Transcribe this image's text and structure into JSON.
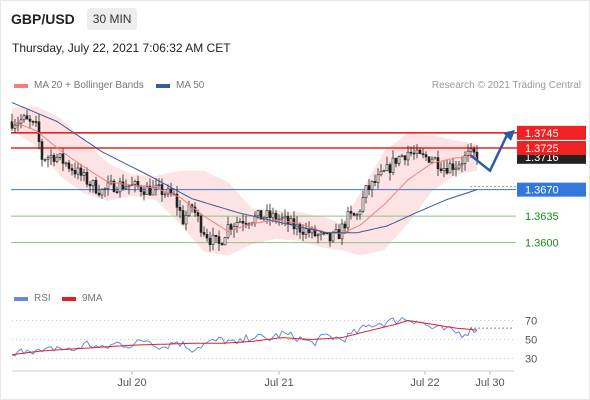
{
  "header": {
    "symbol": "GBP/USD",
    "timeframe": "30 MIN",
    "datetime": "Thursday, July 22, 2021 7:06:32 AM CET"
  },
  "legend": {
    "ma20_label": "MA 20 + Bollinger Bands",
    "ma50_label": "MA 50",
    "rsi_label": "RSI",
    "ma9_label": "9MA",
    "credit": "Research © 2021 Trading Central"
  },
  "colors": {
    "ma20": "#f08080",
    "band": "#fde3e3",
    "ma50": "#3b5a9a",
    "candle": "#222222",
    "resistance": "#ee2222",
    "pivot": "#3377dd",
    "support": "#88c488",
    "support_text": "#1b8a1b",
    "rsi": "#6688dd",
    "rsi_ma": "#dd2222",
    "arrow": "#2a5aa8"
  },
  "chart_data": [
    {
      "type": "candlestick",
      "title": "GBP/USD 30 MIN",
      "ylim": [
        1.3548,
        1.3795
      ],
      "x_ticks": [
        "Jul 20",
        "Jul 21",
        "Jul 22",
        "Jul 30"
      ],
      "levels": [
        {
          "name": "resistance-2",
          "value": 1.3745,
          "label": "1.3745",
          "style": "resistance"
        },
        {
          "name": "resistance-1",
          "value": 1.3725,
          "label": "1.3725",
          "style": "resistance"
        },
        {
          "name": "last-price",
          "value": 1.3716,
          "label": "1.3716",
          "style": "last"
        },
        {
          "name": "pivot",
          "value": 1.367,
          "label": "1.3670",
          "style": "pivot"
        },
        {
          "name": "support-1",
          "value": 1.3635,
          "label": "1.3635",
          "style": "support"
        },
        {
          "name": "support-2",
          "value": 1.36,
          "label": "1.3600",
          "style": "support"
        }
      ],
      "close_keypoints": [
        [
          0,
          1.376
        ],
        [
          4,
          1.3762
        ],
        [
          8,
          1.3752
        ],
        [
          10,
          1.3712
        ],
        [
          14,
          1.3715
        ],
        [
          18,
          1.3705
        ],
        [
          22,
          1.3692
        ],
        [
          26,
          1.3678
        ],
        [
          30,
          1.3668
        ],
        [
          34,
          1.3676
        ],
        [
          38,
          1.3676
        ],
        [
          42,
          1.3673
        ],
        [
          46,
          1.367
        ],
        [
          50,
          1.3668
        ],
        [
          54,
          1.366
        ],
        [
          57,
          1.363
        ],
        [
          60,
          1.3648
        ],
        [
          63,
          1.3622
        ],
        [
          66,
          1.3605
        ],
        [
          69,
          1.3597
        ],
        [
          72,
          1.3622
        ],
        [
          76,
          1.363
        ],
        [
          80,
          1.3632
        ],
        [
          84,
          1.3635
        ],
        [
          88,
          1.3633
        ],
        [
          91,
          1.3628
        ],
        [
          94,
          1.3621
        ],
        [
          97,
          1.3618
        ],
        [
          100,
          1.3612
        ],
        [
          103,
          1.3607
        ],
        [
          106,
          1.3604
        ],
        [
          109,
          1.3612
        ],
        [
          112,
          1.3633
        ],
        [
          115,
          1.3635
        ],
        [
          118,
          1.3668
        ],
        [
          122,
          1.3683
        ],
        [
          125,
          1.3695
        ],
        [
          128,
          1.371
        ],
        [
          132,
          1.372
        ],
        [
          136,
          1.3712
        ],
        [
          140,
          1.3713
        ],
        [
          144,
          1.37
        ],
        [
          148,
          1.3703
        ],
        [
          152,
          1.3715
        ],
        [
          155,
          1.3716
        ]
      ],
      "ma20_keypoints": [
        [
          0,
          1.376
        ],
        [
          8,
          1.3748
        ],
        [
          16,
          1.3722
        ],
        [
          24,
          1.37
        ],
        [
          32,
          1.368
        ],
        [
          40,
          1.3676
        ],
        [
          48,
          1.3672
        ],
        [
          56,
          1.366
        ],
        [
          64,
          1.3635
        ],
        [
          72,
          1.3615
        ],
        [
          80,
          1.3625
        ],
        [
          88,
          1.363
        ],
        [
          96,
          1.3625
        ],
        [
          104,
          1.3614
        ],
        [
          110,
          1.3612
        ],
        [
          116,
          1.3623
        ],
        [
          124,
          1.365
        ],
        [
          132,
          1.3683
        ],
        [
          140,
          1.3705
        ],
        [
          148,
          1.3712
        ],
        [
          155,
          1.3712
        ]
      ],
      "band_upper_keypoints": [
        [
          0,
          1.3778
        ],
        [
          8,
          1.378
        ],
        [
          16,
          1.3765
        ],
        [
          24,
          1.3735
        ],
        [
          32,
          1.3705
        ],
        [
          40,
          1.369
        ],
        [
          48,
          1.3688
        ],
        [
          56,
          1.3695
        ],
        [
          64,
          1.3695
        ],
        [
          72,
          1.368
        ],
        [
          80,
          1.3645
        ],
        [
          88,
          1.3642
        ],
        [
          96,
          1.364
        ],
        [
          104,
          1.3634
        ],
        [
          110,
          1.3625
        ],
        [
          116,
          1.3665
        ],
        [
          124,
          1.372
        ],
        [
          132,
          1.3745
        ],
        [
          140,
          1.3742
        ],
        [
          148,
          1.3735
        ],
        [
          155,
          1.373
        ]
      ],
      "band_lower_keypoints": [
        [
          0,
          1.3748
        ],
        [
          8,
          1.3728
        ],
        [
          16,
          1.3688
        ],
        [
          24,
          1.3665
        ],
        [
          32,
          1.3655
        ],
        [
          40,
          1.3662
        ],
        [
          48,
          1.3656
        ],
        [
          56,
          1.3625
        ],
        [
          64,
          1.3588
        ],
        [
          72,
          1.3583
        ],
        [
          80,
          1.3598
        ],
        [
          88,
          1.3605
        ],
        [
          96,
          1.3602
        ],
        [
          104,
          1.3593
        ],
        [
          110,
          1.359
        ],
        [
          116,
          1.3583
        ],
        [
          124,
          1.359
        ],
        [
          132,
          1.3625
        ],
        [
          140,
          1.3668
        ],
        [
          148,
          1.369
        ],
        [
          155,
          1.3695
        ]
      ],
      "ma50_keypoints": [
        [
          0,
          1.3785
        ],
        [
          15,
          1.376
        ],
        [
          30,
          1.372
        ],
        [
          45,
          1.369
        ],
        [
          60,
          1.3658
        ],
        [
          75,
          1.364
        ],
        [
          90,
          1.3626
        ],
        [
          105,
          1.3613
        ],
        [
          115,
          1.3613
        ],
        [
          125,
          1.3622
        ],
        [
          135,
          1.364
        ],
        [
          145,
          1.3657
        ],
        [
          155,
          1.367
        ]
      ],
      "forecast_path": [
        1.3716,
        1.3695,
        1.3745
      ]
    },
    {
      "type": "line",
      "title": "RSI",
      "ylim": [
        20,
        80
      ],
      "y_ticks": [
        70,
        50,
        30
      ],
      "series": [
        {
          "name": "RSI",
          "keypoints": [
            [
              0,
              31
            ],
            [
              5,
              41
            ],
            [
              10,
              36
            ],
            [
              15,
              42
            ],
            [
              20,
              38
            ],
            [
              25,
              46
            ],
            [
              30,
              40
            ],
            [
              35,
              46
            ],
            [
              40,
              44
            ],
            [
              45,
              50
            ],
            [
              50,
              42
            ],
            [
              55,
              48
            ],
            [
              60,
              40
            ],
            [
              65,
              46
            ],
            [
              70,
              50
            ],
            [
              75,
              45
            ],
            [
              80,
              54
            ],
            [
              85,
              50
            ],
            [
              90,
              56
            ],
            [
              95,
              52
            ],
            [
              100,
              46
            ],
            [
              105,
              54
            ],
            [
              110,
              50
            ],
            [
              115,
              58
            ],
            [
              120,
              66
            ],
            [
              125,
              68
            ],
            [
              130,
              72
            ],
            [
              135,
              70
            ],
            [
              140,
              62
            ],
            [
              145,
              60
            ],
            [
              150,
              56
            ],
            [
              155,
              62
            ]
          ]
        },
        {
          "name": "9MA",
          "keypoints": [
            [
              0,
              34
            ],
            [
              10,
              38
            ],
            [
              20,
              40
            ],
            [
              30,
              42
            ],
            [
              40,
              44
            ],
            [
              50,
              45
            ],
            [
              60,
              46
            ],
            [
              70,
              46
            ],
            [
              80,
              48
            ],
            [
              90,
              52
            ],
            [
              100,
              50
            ],
            [
              110,
              52
            ],
            [
              120,
              60
            ],
            [
              128,
              66
            ],
            [
              132,
              70
            ],
            [
              140,
              66
            ],
            [
              148,
              62
            ],
            [
              155,
              60
            ]
          ]
        }
      ]
    }
  ]
}
